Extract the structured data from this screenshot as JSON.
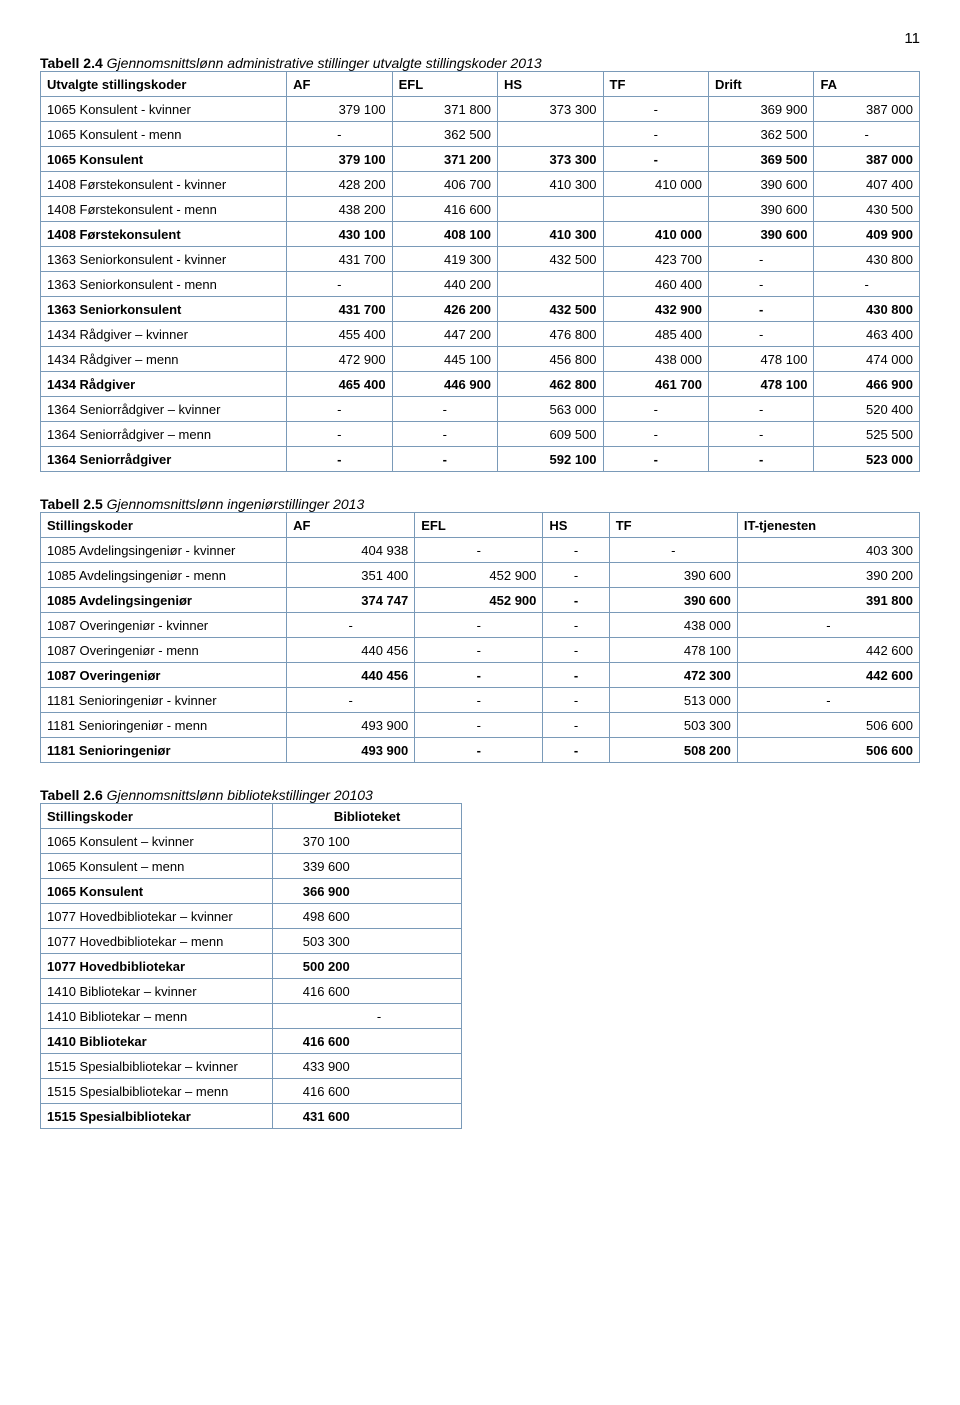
{
  "page_number": "11",
  "table1": {
    "title_lead": "Tabell 2.4",
    "title_rest": " Gjennomsnittslønn administrative stillinger utvalgte stillingskoder 2013",
    "header": [
      "Utvalgte stillingskoder",
      "AF",
      "EFL",
      "HS",
      "TF",
      "Drift",
      "FA"
    ],
    "rows": [
      {
        "label": "1065 Konsulent - kvinner",
        "c": [
          "379 100",
          "371 800",
          "373 300",
          "-",
          "369 900",
          "387 000"
        ],
        "bold": false
      },
      {
        "label": "1065 Konsulent - menn",
        "c": [
          "-",
          "362 500",
          "",
          "-",
          "362 500",
          "-"
        ],
        "bold": false
      },
      {
        "label": "1065 Konsulent",
        "c": [
          "379 100",
          "371 200",
          "373 300",
          "-",
          "369 500",
          "387 000"
        ],
        "bold": true
      },
      {
        "label": "1408 Førstekonsulent - kvinner",
        "c": [
          "428 200",
          "406 700",
          "410 300",
          "410 000",
          "390 600",
          "407 400"
        ],
        "bold": false
      },
      {
        "label": "1408 Førstekonsulent - menn",
        "c": [
          "438 200",
          "416 600",
          "",
          "",
          "390 600",
          "430 500"
        ],
        "bold": false
      },
      {
        "label": "1408 Førstekonsulent",
        "c": [
          "430 100",
          "408 100",
          "410 300",
          "410 000",
          "390 600",
          "409 900"
        ],
        "bold": true
      },
      {
        "label": "1363 Seniorkonsulent - kvinner",
        "c": [
          "431 700",
          "419 300",
          "432 500",
          "423 700",
          "-",
          "430 800"
        ],
        "bold": false
      },
      {
        "label": "1363 Seniorkonsulent - menn",
        "c": [
          "-",
          "440 200",
          "",
          "460 400",
          "-",
          "-"
        ],
        "bold": false
      },
      {
        "label": "1363 Seniorkonsulent",
        "c": [
          "431 700",
          "426 200",
          "432 500",
          "432 900",
          "-",
          "430 800"
        ],
        "bold": true
      },
      {
        "label": "1434 Rådgiver – kvinner",
        "c": [
          "455 400",
          "447 200",
          "476 800",
          "485 400",
          "-",
          "463 400"
        ],
        "bold": false
      },
      {
        "label": "1434 Rådgiver – menn",
        "c": [
          "472 900",
          "445 100",
          "456 800",
          "438 000",
          "478 100",
          "474 000"
        ],
        "bold": false
      },
      {
        "label": "1434 Rådgiver",
        "c": [
          "465 400",
          "446 900",
          "462 800",
          "461 700",
          "478 100",
          "466 900"
        ],
        "bold": true
      },
      {
        "label": "1364 Seniorrådgiver – kvinner",
        "c": [
          "-",
          "-",
          "563 000",
          "-",
          "-",
          "520 400"
        ],
        "bold": false
      },
      {
        "label": "1364 Seniorrådgiver – menn",
        "c": [
          "-",
          "-",
          "609 500",
          "-",
          "-",
          "525 500"
        ],
        "bold": false
      },
      {
        "label": "1364 Seniorrådgiver",
        "c": [
          "-",
          "-",
          "592 100",
          "-",
          "-",
          "523 000"
        ],
        "bold": true
      }
    ]
  },
  "table2": {
    "title_lead": "Tabell 2.5",
    "title_rest": " Gjennomsnittslønn ingeniørstillinger 2013",
    "header": [
      "Stillingskoder",
      "AF",
      "EFL",
      "HS",
      "TF",
      "IT-tjenesten"
    ],
    "rows": [
      {
        "label": "1085 Avdelingsingeniør - kvinner",
        "c": [
          "404 938",
          "-",
          "-",
          "-",
          "403 300"
        ],
        "bold": false
      },
      {
        "label": "1085 Avdelingsingeniør - menn",
        "c": [
          "351 400",
          "452 900",
          "-",
          "390 600",
          "390 200"
        ],
        "bold": false
      },
      {
        "label": "1085 Avdelingsingeniør",
        "c": [
          "374 747",
          "452 900",
          "-",
          "390 600",
          "391 800"
        ],
        "bold": true
      },
      {
        "label": "1087 Overingeniør - kvinner",
        "c": [
          "-",
          "-",
          "-",
          "438 000",
          "-"
        ],
        "bold": false
      },
      {
        "label": "1087 Overingeniør - menn",
        "c": [
          "440 456",
          "-",
          "-",
          "478 100",
          "442 600"
        ],
        "bold": false
      },
      {
        "label": "1087 Overingeniør",
        "c": [
          "440 456",
          "-",
          "-",
          "472 300",
          "442 600"
        ],
        "bold": true
      },
      {
        "label": "1181 Senioringeniør - kvinner",
        "c": [
          "-",
          "-",
          "-",
          "513 000",
          "-"
        ],
        "bold": false
      },
      {
        "label": "1181 Senioringeniør - menn",
        "c": [
          "493 900",
          "-",
          "-",
          "503 300",
          "506 600"
        ],
        "bold": false
      },
      {
        "label": "1181 Senioringeniør",
        "c": [
          "493 900",
          "-",
          "-",
          "508 200",
          "506 600"
        ],
        "bold": true
      }
    ]
  },
  "table3": {
    "title_lead": "Tabell 2.6",
    "title_rest": " Gjennomsnittslønn bibliotekstillinger 20103",
    "header": [
      "Stillingskoder",
      "Biblioteket"
    ],
    "rows": [
      {
        "label": "1065 Konsulent – kvinner",
        "c": [
          "370 100"
        ],
        "bold": false
      },
      {
        "label": "1065 Konsulent – menn",
        "c": [
          "339 600"
        ],
        "bold": false
      },
      {
        "label": "1065 Konsulent",
        "c": [
          "366 900"
        ],
        "bold": true
      },
      {
        "label": "1077 Hovedbibliotekar – kvinner",
        "c": [
          "498 600"
        ],
        "bold": false
      },
      {
        "label": "1077 Hovedbibliotekar – menn",
        "c": [
          "503 300"
        ],
        "bold": false
      },
      {
        "label": "1077 Hovedbibliotekar",
        "c": [
          "500 200"
        ],
        "bold": true
      },
      {
        "label": "1410 Bibliotekar – kvinner",
        "c": [
          "416 600"
        ],
        "bold": false
      },
      {
        "label": "1410 Bibliotekar – menn",
        "c": [
          "-"
        ],
        "bold": false
      },
      {
        "label": "1410 Bibliotekar",
        "c": [
          "416 600"
        ],
        "bold": true
      },
      {
        "label": "1515 Spesialbibliotekar – kvinner",
        "c": [
          "433 900"
        ],
        "bold": false
      },
      {
        "label": "1515 Spesialbibliotekar – menn",
        "c": [
          "416 600"
        ],
        "bold": false
      },
      {
        "label": "1515 Spesialbibliotekar",
        "c": [
          "431 600"
        ],
        "bold": true
      }
    ]
  }
}
